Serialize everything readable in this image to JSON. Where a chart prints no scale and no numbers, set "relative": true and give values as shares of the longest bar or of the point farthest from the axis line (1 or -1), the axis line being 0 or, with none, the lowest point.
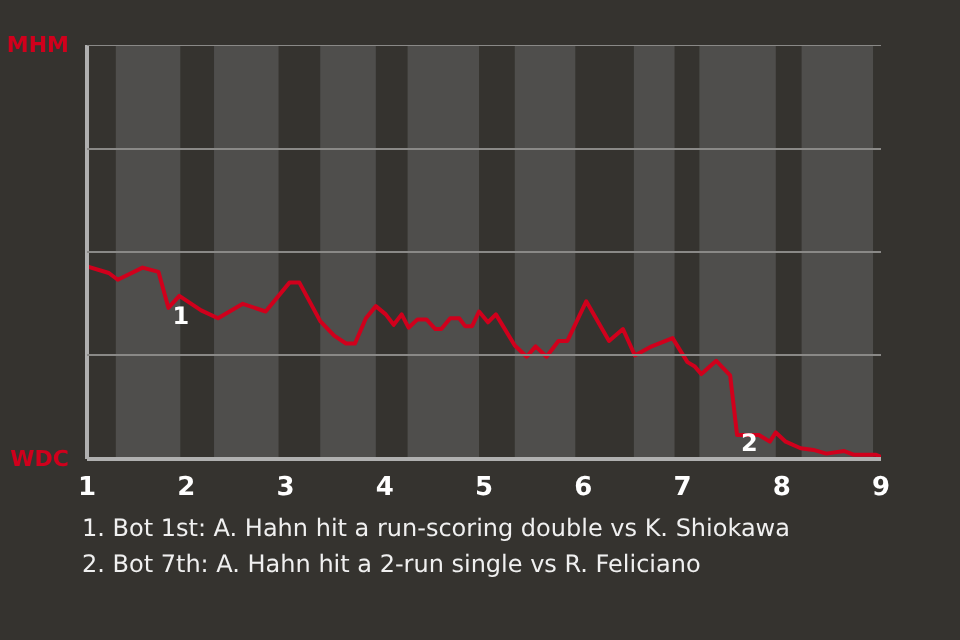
{
  "chart_data": {
    "type": "line",
    "relative": true,
    "x": [
      1.0,
      1.22,
      1.31,
      1.56,
      1.72,
      1.82,
      1.93,
      2.15,
      2.32,
      2.57,
      2.8,
      3.04,
      3.14,
      3.35,
      3.49,
      3.61,
      3.7,
      3.81,
      3.91,
      4.01,
      4.09,
      4.17,
      4.24,
      4.33,
      4.42,
      4.51,
      4.57,
      4.66,
      4.75,
      4.81,
      4.88,
      4.95,
      5.04,
      5.12,
      5.31,
      5.43,
      5.52,
      5.63,
      5.75,
      5.84,
      6.03,
      6.26,
      6.4,
      6.52,
      6.69,
      6.9,
      7.05,
      7.12,
      7.19,
      7.34,
      7.48,
      7.55,
      7.77,
      7.88,
      7.94,
      8.04,
      8.19,
      8.32,
      8.45,
      8.63,
      8.73,
      8.95,
      9.0
    ],
    "series": [
      {
        "color": "#d0001c",
        "values": [
          1,
          0.966,
          0.931,
          0.994,
          0.972,
          0.785,
          0.847,
          0.772,
          0.731,
          0.806,
          0.766,
          0.916,
          0.916,
          0.716,
          0.641,
          0.6,
          0.6,
          0.731,
          0.794,
          0.751,
          0.697,
          0.751,
          0.682,
          0.725,
          0.725,
          0.675,
          0.675,
          0.731,
          0.731,
          0.69,
          0.69,
          0.766,
          0.71,
          0.751,
          0.589,
          0.531,
          0.585,
          0.531,
          0.613,
          0.613,
          0.819,
          0.613,
          0.675,
          0.538,
          0.585,
          0.628,
          0.503,
          0.482,
          0.441,
          0.51,
          0.434,
          0.125,
          0.125,
          0.09,
          0.138,
          0.09,
          0.056,
          0.047,
          0.028,
          0.041,
          0.022,
          0.022,
          0.011
        ]
      }
    ],
    "xlim": [
      1,
      9
    ],
    "xticks": [
      1,
      2,
      3,
      4,
      5,
      6,
      7,
      8,
      9
    ],
    "ref_lines": [
      {
        "axis": "y",
        "value": 0.54,
        "color": "#8a8987"
      },
      {
        "axis": "y",
        "value": 1.075,
        "color": "#8a8987"
      },
      {
        "axis": "y",
        "value": 1.61,
        "color": "#8a8987"
      }
    ],
    "bands": [
      {
        "axis": "x",
        "from": 1.29,
        "to": 1.94,
        "color": "#4f4e4c"
      },
      {
        "axis": "x",
        "from": 2.28,
        "to": 2.93,
        "color": "#4f4e4c"
      },
      {
        "axis": "x",
        "from": 3.35,
        "to": 3.91,
        "color": "#4f4e4c"
      },
      {
        "axis": "x",
        "from": 4.23,
        "to": 4.95,
        "color": "#4f4e4c"
      },
      {
        "axis": "x",
        "from": 5.31,
        "to": 5.92,
        "color": "#4f4e4c"
      },
      {
        "axis": "x",
        "from": 6.51,
        "to": 6.92,
        "color": "#4f4e4c"
      },
      {
        "axis": "x",
        "from": 7.17,
        "to": 7.94,
        "color": "#4f4e4c"
      },
      {
        "axis": "x",
        "from": 8.2,
        "to": 8.92,
        "color": "#4f4e4c"
      }
    ],
    "annotations": [
      "MHM",
      "WDC",
      {
        "text": "1",
        "x": 1.82,
        "y": 0.785
      },
      {
        "text": "2",
        "x": 7.55,
        "y": 0.125
      },
      "1. Bot 1st: A. Hahn hit a run-scoring double vs K. Shiokawa",
      "2. Bot 7th: A. Hahn hit a 2-run single vs R. Feliciano"
    ]
  }
}
